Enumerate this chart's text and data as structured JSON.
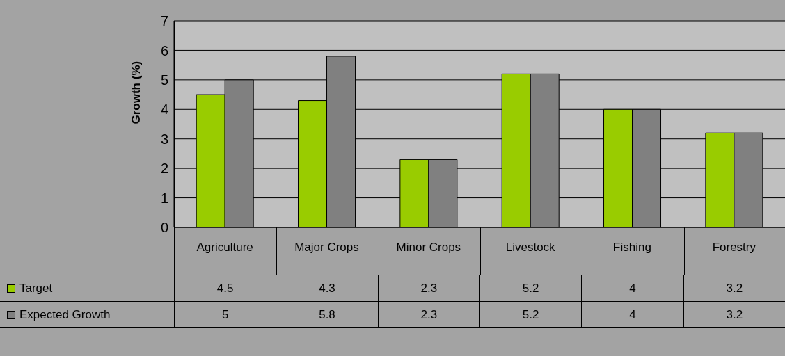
{
  "chart_data": {
    "type": "bar",
    "ylabel": "Growth (%)",
    "categories": [
      "Agriculture",
      "Major Crops",
      "Minor Crops",
      "Livestock",
      "Fishing",
      "Forestry"
    ],
    "series": [
      {
        "name": "Target",
        "color": "#99cc00",
        "values": [
          4.5,
          4.3,
          2.3,
          5.2,
          4,
          3.2
        ]
      },
      {
        "name": "Expected Growth",
        "color": "#808080",
        "values": [
          5,
          5.8,
          2.3,
          5.2,
          4,
          3.2
        ]
      }
    ],
    "ylim": [
      0,
      7
    ],
    "yticks": [
      0,
      1,
      2,
      3,
      4,
      5,
      6,
      7
    ],
    "grid": "y",
    "legend": "bottom",
    "data_labels": true
  }
}
